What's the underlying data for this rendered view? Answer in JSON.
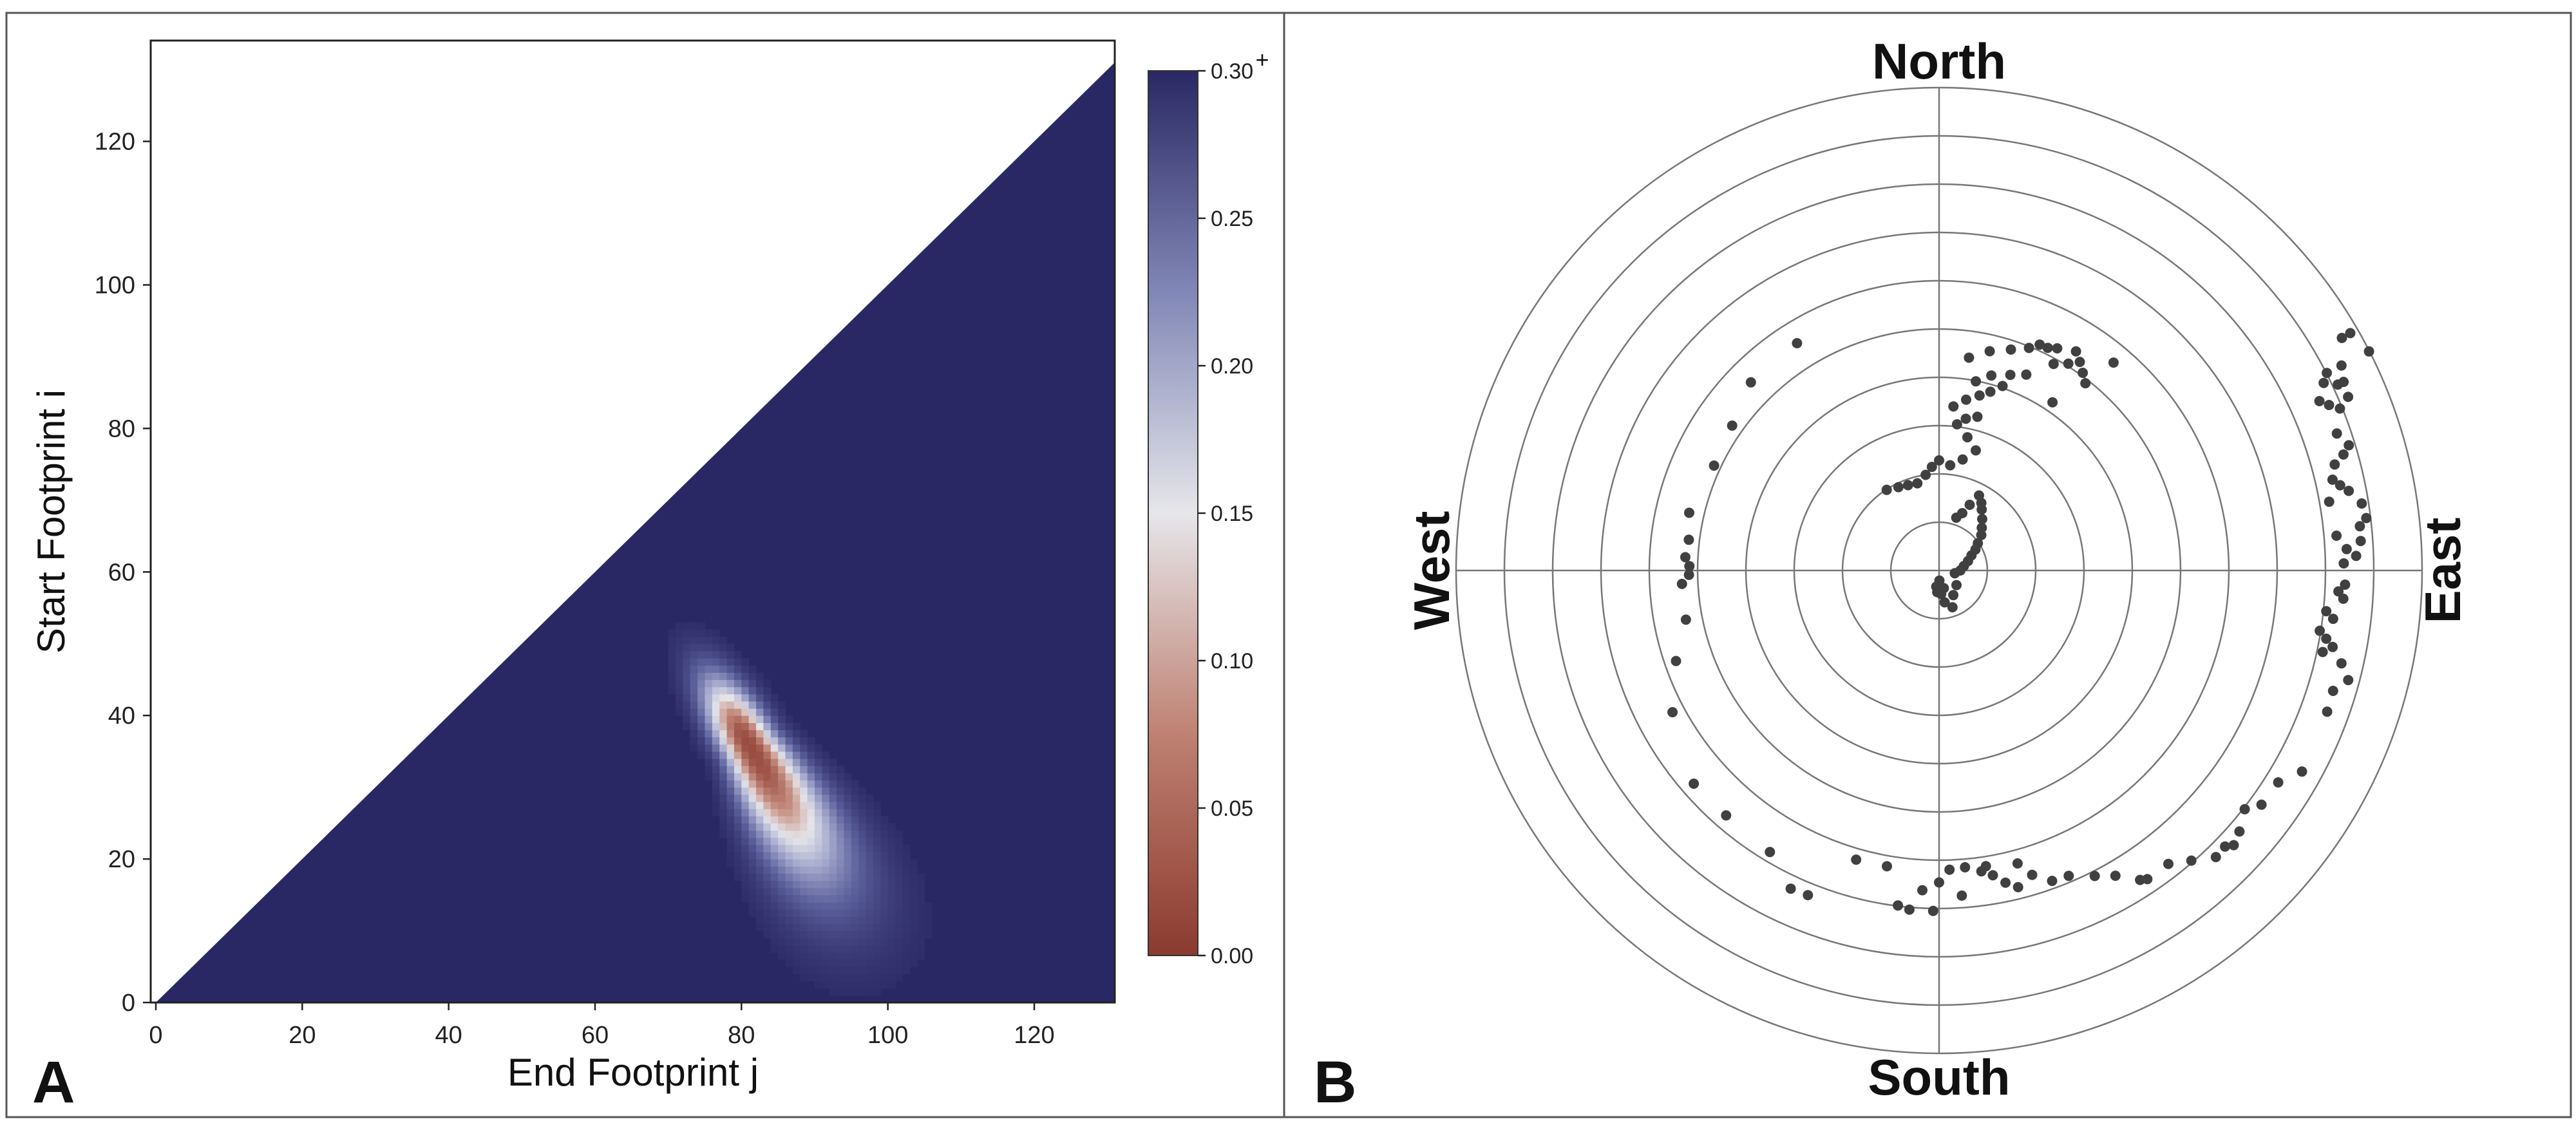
{
  "panels": {
    "a_label": "A",
    "b_label": "B"
  },
  "chart_data": [
    {
      "type": "heatmap",
      "panel": "A",
      "xlabel": "End Footprint j",
      "ylabel": "Start Footprint i",
      "xlim": [
        0,
        131
      ],
      "ylim": [
        0,
        131
      ],
      "xticks": [
        0,
        20,
        40,
        60,
        80,
        100,
        120
      ],
      "yticks": [
        0,
        20,
        40,
        60,
        80,
        100,
        120
      ],
      "mask": "upper triangle (i > j) empty",
      "field": {
        "background": 0.3,
        "min_value": 0.03,
        "min_location": {
          "j": 81,
          "i": 36
        },
        "low_region_direction": "from (j 74, i 48) down-right to (j 96, i 10)"
      },
      "colorbar": {
        "ticks": [
          "0.00",
          "0.05",
          "0.10",
          "0.15",
          "0.20",
          "0.25",
          "0.30"
        ],
        "tick_values": [
          0.0,
          0.05,
          0.1,
          0.15,
          0.2,
          0.25,
          0.3
        ],
        "range": [
          0.0,
          0.3
        ],
        "extend_marker": "+",
        "colors": {
          "low": "#8b3a2e",
          "mid": "#e6e6ea",
          "high": "#2a2864"
        }
      }
    },
    {
      "type": "scatter",
      "panel": "B",
      "projection": "polar",
      "rings": 10,
      "directions": {
        "north": "North",
        "south": "South",
        "east": "East",
        "west": "West"
      },
      "point_color": "#404040",
      "units": "azimuth_deg (clockwise from North), r (fraction of outer radius)",
      "points": [
        {
          "az": 190,
          "r": 0.034
        },
        {
          "az": 185,
          "r": 0.045
        },
        {
          "az": 178,
          "r": 0.021
        },
        {
          "az": 175,
          "r": 0.049
        },
        {
          "az": 170,
          "r": 0.067
        },
        {
          "az": 165,
          "r": 0.038
        },
        {
          "az": 160,
          "r": 0.081
        },
        {
          "az": 150,
          "r": 0.059
        },
        {
          "az": 130,
          "r": 0.047
        },
        {
          "az": 100,
          "r": 0.033
        },
        {
          "az": 90,
          "r": 0.044
        },
        {
          "az": 80,
          "r": 0.052
        },
        {
          "az": 72,
          "r": 0.063
        },
        {
          "az": 65,
          "r": 0.074
        },
        {
          "az": 60,
          "r": 0.087
        },
        {
          "az": 55,
          "r": 0.098
        },
        {
          "az": 50,
          "r": 0.114
        },
        {
          "az": 45,
          "r": 0.125
        },
        {
          "az": 40,
          "r": 0.139
        },
        {
          "az": 35,
          "r": 0.154
        },
        {
          "az": 32,
          "r": 0.165
        },
        {
          "az": 28,
          "r": 0.176
        },
        {
          "az": 25,
          "r": 0.15
        },
        {
          "az": 22,
          "r": 0.128
        },
        {
          "az": 18,
          "r": 0.115
        },
        {
          "az": -33,
          "r": 0.199
        },
        {
          "az": -26,
          "r": 0.192
        },
        {
          "az": -20,
          "r": 0.188
        },
        {
          "az": -14,
          "r": 0.186
        },
        {
          "az": -8,
          "r": 0.2
        },
        {
          "az": -4,
          "r": 0.215
        },
        {
          "az": 0,
          "r": 0.228
        },
        {
          "az": 6,
          "r": 0.219
        },
        {
          "az": 12,
          "r": 0.235
        },
        {
          "az": 17,
          "r": 0.26
        },
        {
          "az": 12,
          "r": 0.282
        },
        {
          "az": 7,
          "r": 0.305
        },
        {
          "az": 10,
          "r": 0.319
        },
        {
          "az": 14,
          "r": 0.328
        },
        {
          "az": 5,
          "r": 0.341
        },
        {
          "az": 9,
          "r": 0.358
        },
        {
          "az": 13,
          "r": 0.372
        },
        {
          "az": 16,
          "r": 0.385
        },
        {
          "az": 11,
          "r": 0.399
        },
        {
          "az": 15,
          "r": 0.418
        },
        {
          "az": 20,
          "r": 0.431
        },
        {
          "az": 24,
          "r": 0.444
        },
        {
          "az": 8,
          "r": 0.445
        },
        {
          "az": 13,
          "r": 0.466
        },
        {
          "az": 18,
          "r": 0.481
        },
        {
          "az": 22,
          "r": 0.497
        },
        {
          "az": 26,
          "r": 0.513
        },
        {
          "az": 28,
          "r": 0.521
        },
        {
          "az": 32,
          "r": 0.535
        },
        {
          "az": 34,
          "r": 0.521
        },
        {
          "az": 36,
          "r": 0.506
        },
        {
          "az": 38,
          "r": 0.492
        },
        {
          "az": 32,
          "r": 0.505
        },
        {
          "az": 29,
          "r": 0.489
        },
        {
          "az": 24,
          "r": 0.512
        },
        {
          "az": 40,
          "r": 0.562
        },
        {
          "az": 19,
          "r": 0.404
        },
        {
          "az": 34,
          "r": 0.42
        },
        {
          "az": 63,
          "r": 0.999
        },
        {
          "az": 60,
          "r": 0.983
        },
        {
          "az": 60,
          "r": 0.963
        },
        {
          "az": 63,
          "r": 0.935
        },
        {
          "az": 65,
          "r": 0.924
        },
        {
          "az": 65,
          "r": 0.911
        },
        {
          "az": 63,
          "r": 0.901
        },
        {
          "az": 64,
          "r": 0.886
        },
        {
          "az": 67,
          "r": 0.877
        },
        {
          "az": 66,
          "r": 0.862
        },
        {
          "az": 68,
          "r": 0.895
        },
        {
          "az": 67,
          "r": 0.92
        },
        {
          "az": 71,
          "r": 0.871
        },
        {
          "az": 73,
          "r": 0.887
        },
        {
          "az": 74,
          "r": 0.871
        },
        {
          "az": 75,
          "r": 0.848
        },
        {
          "az": 78,
          "r": 0.849
        },
        {
          "az": 79,
          "r": 0.864
        },
        {
          "az": 81,
          "r": 0.886
        },
        {
          "az": 83,
          "r": 0.891
        },
        {
          "az": 84,
          "r": 0.876
        },
        {
          "az": 86,
          "r": 0.875
        },
        {
          "az": 88,
          "r": 0.864
        },
        {
          "az": 87,
          "r": 0.845
        },
        {
          "az": 85,
          "r": 0.826
        },
        {
          "az": 80,
          "r": 0.82
        },
        {
          "az": 77,
          "r": 0.836
        },
        {
          "az": 89,
          "r": 0.838
        },
        {
          "az": 92,
          "r": 0.841
        },
        {
          "az": 94,
          "r": 0.839
        },
        {
          "az": 97,
          "r": 0.822
        },
        {
          "az": 100,
          "r": 0.814
        },
        {
          "az": 102,
          "r": 0.812
        },
        {
          "az": 99,
          "r": 0.798
        },
        {
          "az": 96,
          "r": 0.806
        },
        {
          "az": 93,
          "r": 0.828
        },
        {
          "az": 101,
          "r": 0.83
        },
        {
          "az": 103,
          "r": 0.855
        },
        {
          "az": 105,
          "r": 0.877
        },
        {
          "az": 107,
          "r": 0.853
        },
        {
          "az": 110,
          "r": 0.855
        },
        {
          "az": 119,
          "r": 0.859
        },
        {
          "az": 122,
          "r": 0.828
        },
        {
          "az": 126,
          "r": 0.825
        },
        {
          "az": 128,
          "r": 0.803
        },
        {
          "az": 131,
          "r": 0.824
        },
        {
          "az": 133,
          "r": 0.834
        },
        {
          "az": 134,
          "r": 0.823
        },
        {
          "az": 136,
          "r": 0.825
        },
        {
          "az": 139,
          "r": 0.796
        },
        {
          "az": 142,
          "r": 0.771
        },
        {
          "az": 146,
          "r": 0.771
        },
        {
          "az": 147,
          "r": 0.764
        },
        {
          "az": 150,
          "r": 0.73
        },
        {
          "az": 153,
          "r": 0.71
        },
        {
          "az": 157,
          "r": 0.687
        },
        {
          "az": 160,
          "r": 0.684
        },
        {
          "az": 163,
          "r": 0.659
        },
        {
          "az": 165,
          "r": 0.628
        },
        {
          "az": 168,
          "r": 0.661
        },
        {
          "az": 170,
          "r": 0.641
        },
        {
          "az": 172,
          "r": 0.629
        },
        {
          "az": 175,
          "r": 0.617
        },
        {
          "az": 178,
          "r": 0.62
        },
        {
          "az": 180,
          "r": 0.646
        },
        {
          "az": 183,
          "r": 0.663
        },
        {
          "az": 185,
          "r": 0.705
        },
        {
          "az": 187,
          "r": 0.699
        },
        {
          "az": 181,
          "r": 0.705
        },
        {
          "az": 176,
          "r": 0.675
        },
        {
          "az": 171,
          "r": 0.62
        },
        {
          "az": 166,
          "r": 0.676
        },
        {
          "az": 190,
          "r": 0.622
        },
        {
          "az": 196,
          "r": 0.623
        },
        {
          "az": 202,
          "r": 0.725
        },
        {
          "az": 205,
          "r": 0.727
        },
        {
          "az": 211,
          "r": 0.68
        },
        {
          "az": 221,
          "r": 0.672
        },
        {
          "az": 229,
          "r": 0.673
        },
        {
          "az": 242,
          "r": 0.625
        },
        {
          "az": 251,
          "r": 0.576
        },
        {
          "az": 259,
          "r": 0.534
        },
        {
          "az": 267,
          "r": 0.533
        },
        {
          "az": 269,
          "r": 0.518
        },
        {
          "az": 271,
          "r": 0.517
        },
        {
          "az": 273,
          "r": 0.526
        },
        {
          "az": 277,
          "r": 0.522
        },
        {
          "az": 283,
          "r": 0.531
        },
        {
          "az": 295,
          "r": 0.514
        },
        {
          "az": 305,
          "r": 0.523
        },
        {
          "az": 315,
          "r": 0.551
        },
        {
          "az": 328,
          "r": 0.555
        }
      ]
    }
  ]
}
